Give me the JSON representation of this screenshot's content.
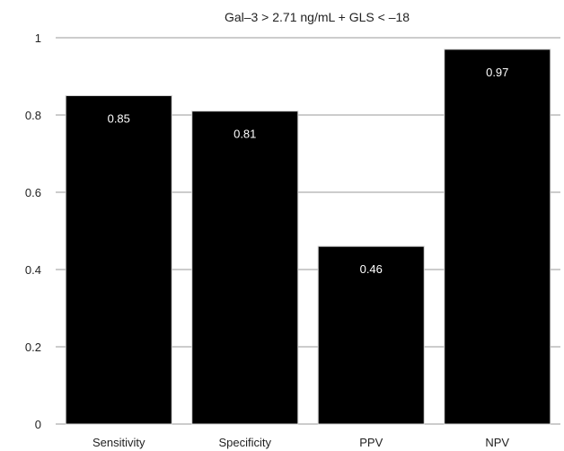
{
  "chart_data": {
    "type": "bar",
    "title": "Gal–3 > 2.71 ng/mL + GLS < –18",
    "categories": [
      "Sensitivity",
      "Specificity",
      "PPV",
      "NPV"
    ],
    "values": [
      0.85,
      0.81,
      0.46,
      0.97
    ],
    "data_labels": [
      "0.85",
      "0.81",
      "0.46",
      "0.97"
    ],
    "xlabel": "",
    "ylabel": "",
    "ylim": [
      0,
      1
    ],
    "yticks": [
      0,
      0.2,
      0.4,
      0.6,
      0.8,
      1
    ],
    "ytick_labels": [
      "0",
      "0.2",
      "0.4",
      "0.6",
      "0.8",
      "1"
    ],
    "grid": true,
    "bar_color": "#000000",
    "label_color": "#ffffff"
  }
}
